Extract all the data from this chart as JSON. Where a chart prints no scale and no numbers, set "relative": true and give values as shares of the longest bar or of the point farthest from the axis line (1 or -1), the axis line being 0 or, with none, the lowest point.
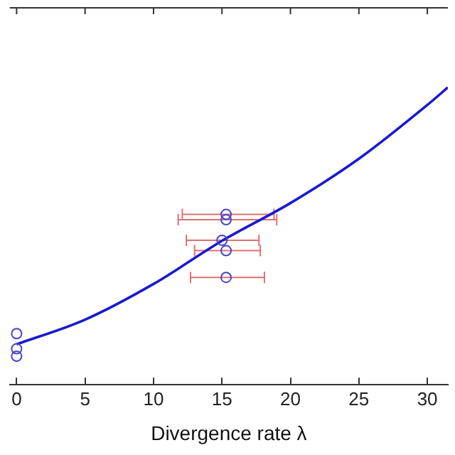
{
  "chart_data": {
    "type": "scatter",
    "xlabel": "Divergence rate λ",
    "relative": true,
    "xlim": [
      -0.5,
      31.5
    ],
    "xticks": [
      0,
      5,
      10,
      15,
      20,
      25,
      30
    ],
    "grid": false,
    "legend": false,
    "series": [
      {
        "color": "#4646c8",
        "marker": "circle",
        "x": [
          0,
          0,
          0,
          15.3,
          15.3,
          15,
          15.3,
          15.3
        ],
        "values": [
          0.172,
          0.121,
          0.096,
          0.573,
          0.555,
          0.486,
          0.451,
          0.361
        ],
        "xerrors": [
          null,
          null,
          null,
          [
            12.1,
            18.8
          ],
          [
            11.8,
            19
          ],
          [
            12.4,
            17.7
          ],
          [
            13,
            17.8
          ],
          [
            12.7,
            18.1
          ]
        ]
      },
      {
        "type": "line",
        "color": "#1a1ad0",
        "marker": "none",
        "line_style": "solid",
        "x": [
          0,
          5,
          10,
          15,
          20,
          25,
          30,
          31.5
        ],
        "values": [
          0.136,
          0.219,
          0.339,
          0.484,
          0.611,
          0.76,
          0.941,
          1
        ]
      }
    ]
  }
}
